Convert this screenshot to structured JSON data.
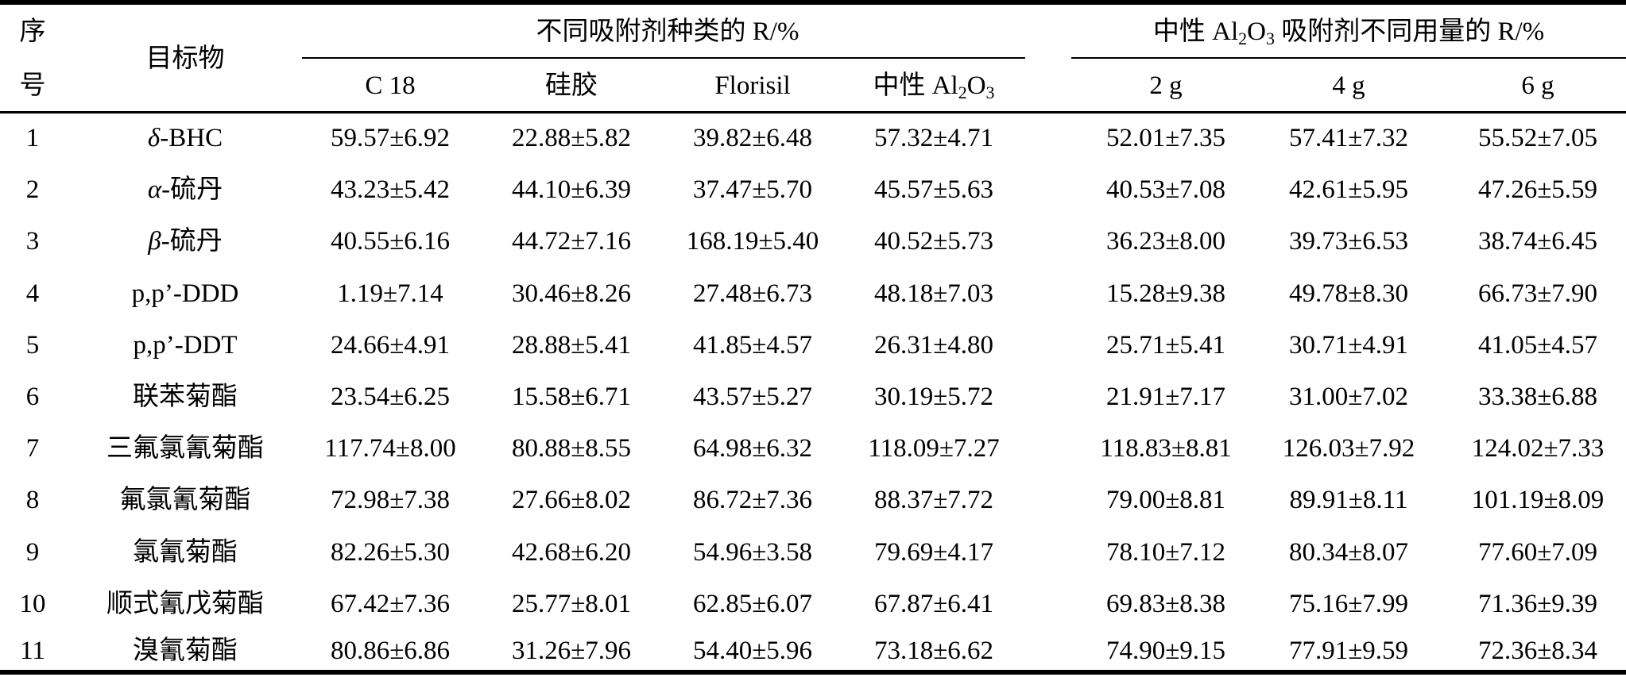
{
  "header": {
    "seq_line1": "序",
    "seq_line2": "号",
    "target": "目标物",
    "group1_title": "不同吸附剂种类的 R/%",
    "group2_prefix": "中性 Al",
    "group2_sub1": "2",
    "group2_mid": "O",
    "group2_sub2": "3",
    "group2_suffix": " 吸附剂不同用量的 R/%",
    "col_c18": "C 18",
    "col_silica": "硅胶",
    "col_florisil": "Florisil",
    "col_al2o3_prefix": "中性 Al",
    "col_al2o3_sub1": "2",
    "col_al2o3_mid": "O",
    "col_al2o3_sub2": "3",
    "col_2g": "2 g",
    "col_4g": "4 g",
    "col_6g": "6 g"
  },
  "rows": [
    {
      "seq": "1",
      "prefix": "δ",
      "name": "-BHC",
      "c18": "59.57±6.92",
      "silica": "22.88±5.82",
      "florisil": "39.82±6.48",
      "al2o3": "57.32±4.71",
      "g2": "52.01±7.35",
      "g4": "57.41±7.32",
      "g6": "55.52±7.05"
    },
    {
      "seq": "2",
      "prefix": "α",
      "name": "-硫丹",
      "c18": "43.23±5.42",
      "silica": "44.10±6.39",
      "florisil": "37.47±5.70",
      "al2o3": "45.57±5.63",
      "g2": "40.53±7.08",
      "g4": "42.61±5.95",
      "g6": "47.26±5.59"
    },
    {
      "seq": "3",
      "prefix": "β",
      "name": "-硫丹",
      "c18": "40.55±6.16",
      "silica": "44.72±7.16",
      "florisil": "168.19±5.40",
      "al2o3": "40.52±5.73",
      "g2": "36.23±8.00",
      "g4": "39.73±6.53",
      "g6": "38.74±6.45"
    },
    {
      "seq": "4",
      "prefix": "",
      "name": "p,p’-DDD",
      "c18": "1.19±7.14",
      "silica": "30.46±8.26",
      "florisil": "27.48±6.73",
      "al2o3": "48.18±7.03",
      "g2": "15.28±9.38",
      "g4": "49.78±8.30",
      "g6": "66.73±7.90"
    },
    {
      "seq": "5",
      "prefix": "",
      "name": "p,p’-DDT",
      "c18": "24.66±4.91",
      "silica": "28.88±5.41",
      "florisil": "41.85±4.57",
      "al2o3": "26.31±4.80",
      "g2": "25.71±5.41",
      "g4": "30.71±4.91",
      "g6": "41.05±4.57"
    },
    {
      "seq": "6",
      "prefix": "",
      "name": "联苯菊酯",
      "c18": "23.54±6.25",
      "silica": "15.58±6.71",
      "florisil": "43.57±5.27",
      "al2o3": "30.19±5.72",
      "g2": "21.91±7.17",
      "g4": "31.00±7.02",
      "g6": "33.38±6.88"
    },
    {
      "seq": "7",
      "prefix": "",
      "name": "三氟氯氰菊酯",
      "c18": "117.74±8.00",
      "silica": "80.88±8.55",
      "florisil": "64.98±6.32",
      "al2o3": "118.09±7.27",
      "g2": "118.83±8.81",
      "g4": "126.03±7.92",
      "g6": "124.02±7.33"
    },
    {
      "seq": "8",
      "prefix": "",
      "name": "氟氯氰菊酯",
      "c18": "72.98±7.38",
      "silica": "27.66±8.02",
      "florisil": "86.72±7.36",
      "al2o3": "88.37±7.72",
      "g2": "79.00±8.81",
      "g4": "89.91±8.11",
      "g6": "101.19±8.09"
    },
    {
      "seq": "9",
      "prefix": "",
      "name": "氯氰菊酯",
      "c18": "82.26±5.30",
      "silica": "42.68±6.20",
      "florisil": "54.96±3.58",
      "al2o3": "79.69±4.17",
      "g2": "78.10±7.12",
      "g4": "80.34±8.07",
      "g6": "77.60±7.09"
    },
    {
      "seq": "10",
      "prefix": "",
      "name": "顺式氰戊菊酯",
      "c18": "67.42±7.36",
      "silica": "25.77±8.01",
      "florisil": "62.85±6.07",
      "al2o3": "67.87±6.41",
      "g2": "69.83±8.38",
      "g4": "75.16±7.99",
      "g6": "71.36±9.39"
    },
    {
      "seq": "11",
      "prefix": "",
      "name": "溴氰菊酯",
      "c18": "80.86±6.86",
      "silica": "31.26±7.96",
      "florisil": "54.40±5.96",
      "al2o3": "73.18±6.62",
      "g2": "74.90±9.15",
      "g4": "77.91±9.59",
      "g6": "72.36±8.34"
    }
  ]
}
